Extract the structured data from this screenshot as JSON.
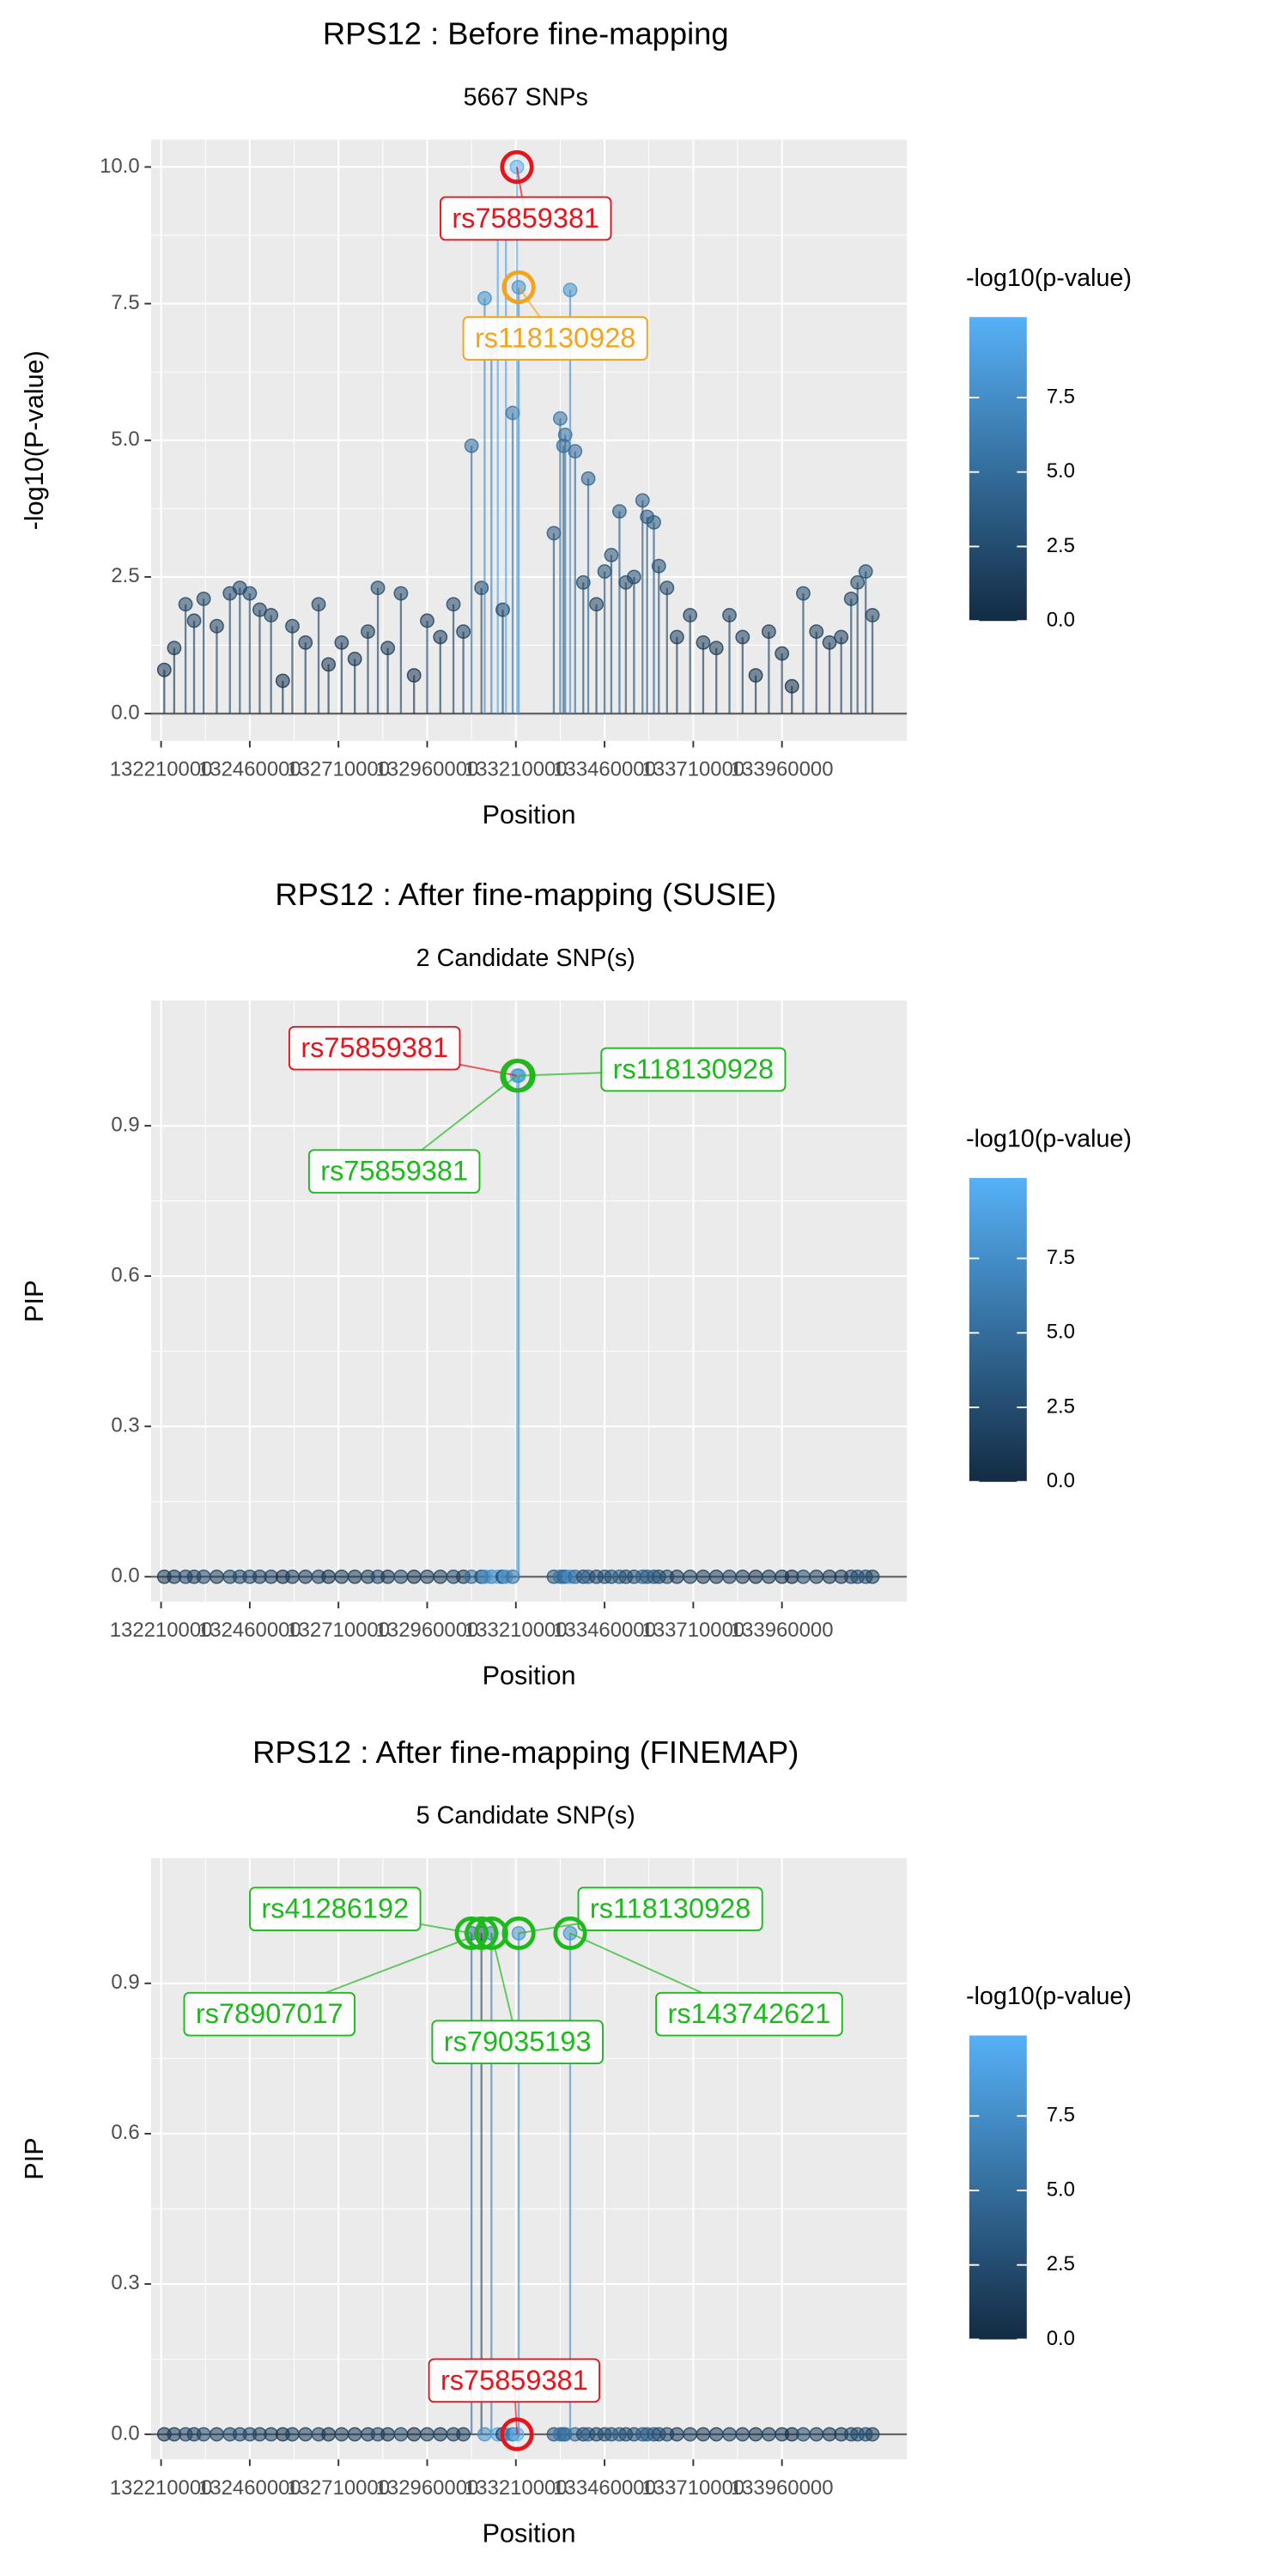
{
  "chart_data": [
    {
      "type": "lollipop",
      "title": "RPS12 : Before fine-mapping",
      "subtitle": "5667 SNPs",
      "x_label": "Position",
      "y_label": "-log10(P-value)",
      "x": [
        132219000,
        132247000,
        132279000,
        132303000,
        132330000,
        132367000,
        132404000,
        132432000,
        132460000,
        132488000,
        132520000,
        132553000,
        132580000,
        132617000,
        132654000,
        132682000,
        132719000,
        132756000,
        132793000,
        132821000,
        132849000,
        132886000,
        132923000,
        132960000,
        132997000,
        133034000,
        133062000,
        133085000,
        133113000,
        133122000,
        133141000,
        133159000,
        133173000,
        133182000,
        133201000,
        133213000,
        133218000,
        133317000,
        133335000,
        133344000,
        133349000,
        133363000,
        133377000,
        133400000,
        133414000,
        133437000,
        133460000,
        133479000,
        133502000,
        133520000,
        133543000,
        133567000,
        133580000,
        133599000,
        133613000,
        133636000,
        133664000,
        133701000,
        133738000,
        133775000,
        133812000,
        133849000,
        133886000,
        133923000,
        133960000,
        133988000,
        134020000,
        134057000,
        134094000,
        134127000,
        134155000,
        134173000,
        134196000,
        134215000
      ],
      "values": [
        0.8,
        1.2,
        2.0,
        1.7,
        2.1,
        1.6,
        2.2,
        2.3,
        2.2,
        1.9,
        1.8,
        0.6,
        1.6,
        1.3,
        2.0,
        0.9,
        1.3,
        1.0,
        1.5,
        2.3,
        1.2,
        2.2,
        0.7,
        1.7,
        1.4,
        2.0,
        1.5,
        4.9,
        2.3,
        7.6,
        6.7,
        9.3,
        1.9,
        9.0,
        5.5,
        10.0,
        7.8,
        3.3,
        5.4,
        4.9,
        5.1,
        7.75,
        4.8,
        2.4,
        4.3,
        2.0,
        2.6,
        2.9,
        3.7,
        2.4,
        2.5,
        3.9,
        3.6,
        3.5,
        2.7,
        2.3,
        1.4,
        1.8,
        1.3,
        1.2,
        1.8,
        1.4,
        0.7,
        1.5,
        1.1,
        0.5,
        2.2,
        1.5,
        1.3,
        1.4,
        2.1,
        2.4,
        2.6,
        1.8
      ],
      "xlim": [
        132182000,
        134312000
      ],
      "xticks": [
        132210000,
        132460000,
        132710000,
        132960000,
        133210000,
        133460000,
        133710000,
        133960000
      ],
      "ylim": [
        -0.5,
        10.5
      ],
      "yticks": [
        {
          "value": 0,
          "label": "0.0"
        },
        2.5,
        {
          "value": 5,
          "label": "5.0"
        },
        7.5,
        {
          "value": 10,
          "label": "10.0"
        }
      ],
      "grid": true,
      "colorbar": {
        "title": "-log10(p-value)",
        "limits": [
          0,
          10.2
        ],
        "colors": [
          "#132B43",
          "#56B1F7"
        ],
        "ticks": [
          {
            "value": 0,
            "label": "0.0"
          },
          2.5,
          {
            "value": 5,
            "label": "5.0"
          },
          7.5
        ]
      },
      "annotations": [
        {
          "label": "rs75859381",
          "x": 133213000,
          "y": 10.0,
          "color": "#e8141b"
        },
        {
          "label": "rs118130928",
          "x": 133218000,
          "y": 7.8,
          "color": "#f5a31a"
        }
      ]
    },
    {
      "type": "lollipop",
      "title": "RPS12 : After fine-mapping (SUSIE)",
      "subtitle": "2 Candidate SNP(s)",
      "x_label": "Position",
      "y_label": "PIP",
      "x": [
        132219000,
        132247000,
        132279000,
        132303000,
        132330000,
        132367000,
        132404000,
        132432000,
        132460000,
        132488000,
        132520000,
        132553000,
        132580000,
        132617000,
        132654000,
        132682000,
        132719000,
        132756000,
        132793000,
        132821000,
        132849000,
        132886000,
        132923000,
        132960000,
        132997000,
        133034000,
        133062000,
        133085000,
        133113000,
        133122000,
        133141000,
        133159000,
        133173000,
        133182000,
        133201000,
        133213000,
        133218000,
        133317000,
        133335000,
        133344000,
        133349000,
        133363000,
        133377000,
        133400000,
        133414000,
        133437000,
        133460000,
        133479000,
        133502000,
        133520000,
        133543000,
        133567000,
        133580000,
        133599000,
        133613000,
        133636000,
        133664000,
        133701000,
        133738000,
        133775000,
        133812000,
        133849000,
        133886000,
        133923000,
        133960000,
        133988000,
        134020000,
        134057000,
        134094000,
        134127000,
        134155000,
        134173000,
        134196000,
        134215000
      ],
      "values": [
        0,
        0,
        0,
        0,
        0,
        0,
        0,
        0,
        0,
        0,
        0,
        0,
        0,
        0,
        0,
        0,
        0,
        0,
        0,
        0,
        0,
        0,
        0,
        0,
        0,
        0,
        0,
        0,
        0,
        0,
        0,
        0,
        0,
        0,
        0,
        1.0,
        1.0,
        0,
        0,
        0,
        0,
        0,
        0,
        0,
        0,
        0,
        0,
        0,
        0,
        0,
        0,
        0,
        0,
        0,
        0,
        0,
        0,
        0,
        0,
        0,
        0,
        0,
        0,
        0,
        0,
        0,
        0,
        0,
        0,
        0,
        0,
        0,
        0,
        0
      ],
      "color_values": [
        0.8,
        1.2,
        2.0,
        1.7,
        2.1,
        1.6,
        2.2,
        2.3,
        2.2,
        1.9,
        1.8,
        0.6,
        1.6,
        1.3,
        2.0,
        0.9,
        1.3,
        1.0,
        1.5,
        2.3,
        1.2,
        2.2,
        0.7,
        1.7,
        1.4,
        2.0,
        1.5,
        4.9,
        2.3,
        7.6,
        6.7,
        9.3,
        1.9,
        9.0,
        5.5,
        10.0,
        7.8,
        3.3,
        5.4,
        4.9,
        5.1,
        7.75,
        4.8,
        2.4,
        4.3,
        2.0,
        2.6,
        2.9,
        3.7,
        2.4,
        2.5,
        3.9,
        3.6,
        3.5,
        2.7,
        2.3,
        1.4,
        1.8,
        1.3,
        1.2,
        1.8,
        1.4,
        0.7,
        1.5,
        1.1,
        0.5,
        2.2,
        1.5,
        1.3,
        1.4,
        2.1,
        2.4,
        2.6,
        1.8
      ],
      "xlim": [
        132182000,
        134312000
      ],
      "xticks": [
        132210000,
        132460000,
        132710000,
        132960000,
        133210000,
        133460000,
        133710000,
        133960000
      ],
      "ylim": [
        -0.05,
        1.15
      ],
      "yticks": [
        {
          "value": 0,
          "label": "0.0"
        },
        0.3,
        0.6,
        0.9
      ],
      "grid": true,
      "colorbar": {
        "title": "-log10(p-value)",
        "limits": [
          0,
          10.2
        ],
        "colors": [
          "#132B43",
          "#56B1F7"
        ],
        "ticks": [
          {
            "value": 0,
            "label": "0.0"
          },
          2.5,
          {
            "value": 5,
            "label": "5.0"
          },
          7.5
        ]
      },
      "annotations": [
        {
          "label": "rs75859381",
          "x": 133213000,
          "y": 1.0,
          "color": "#e8141b"
        },
        {
          "label": "rs118130928",
          "x": 133218000,
          "y": 1.0,
          "color": "#1db91d"
        },
        {
          "label": "rs75859381",
          "x": 133213000,
          "y": 1.0,
          "color": "#1db91d"
        }
      ]
    },
    {
      "type": "lollipop",
      "title": "RPS12 : After fine-mapping (FINEMAP)",
      "subtitle": "5 Candidate SNP(s)",
      "x_label": "Position",
      "y_label": "PIP",
      "x": [
        132219000,
        132247000,
        132279000,
        132303000,
        132330000,
        132367000,
        132404000,
        132432000,
        132460000,
        132488000,
        132520000,
        132553000,
        132580000,
        132617000,
        132654000,
        132682000,
        132719000,
        132756000,
        132793000,
        132821000,
        132849000,
        132886000,
        132923000,
        132960000,
        132997000,
        133034000,
        133062000,
        133085000,
        133113000,
        133122000,
        133141000,
        133159000,
        133173000,
        133182000,
        133201000,
        133213000,
        133218000,
        133317000,
        133335000,
        133344000,
        133349000,
        133363000,
        133377000,
        133400000,
        133414000,
        133437000,
        133460000,
        133479000,
        133502000,
        133520000,
        133543000,
        133567000,
        133580000,
        133599000,
        133613000,
        133636000,
        133664000,
        133701000,
        133738000,
        133775000,
        133812000,
        133849000,
        133886000,
        133923000,
        133960000,
        133988000,
        134020000,
        134057000,
        134094000,
        134127000,
        134155000,
        134173000,
        134196000,
        134215000
      ],
      "values": [
        0,
        0,
        0,
        0,
        0,
        0,
        0,
        0,
        0,
        0,
        0,
        0,
        0,
        0,
        0,
        0,
        0,
        0,
        0,
        0,
        0,
        0,
        0,
        0,
        0,
        0,
        0,
        1.0,
        1.0,
        0,
        1.0,
        0,
        0,
        0,
        0,
        0,
        1.0,
        0,
        0,
        0,
        0,
        1.0,
        0,
        0,
        0,
        0,
        0,
        0,
        0,
        0,
        0,
        0,
        0,
        0,
        0,
        0,
        0,
        0,
        0,
        0,
        0,
        0,
        0,
        0,
        0,
        0,
        0,
        0,
        0,
        0,
        0,
        0,
        0,
        0
      ],
      "color_values": [
        0.8,
        1.2,
        2.0,
        1.7,
        2.1,
        1.6,
        2.2,
        2.3,
        2.2,
        1.9,
        1.8,
        0.6,
        1.6,
        1.3,
        2.0,
        0.9,
        1.3,
        1.0,
        1.5,
        2.3,
        1.2,
        2.2,
        0.7,
        1.7,
        1.4,
        2.0,
        1.5,
        4.9,
        2.3,
        7.6,
        6.7,
        9.3,
        1.9,
        9.0,
        5.5,
        10.0,
        7.8,
        3.3,
        5.4,
        4.9,
        5.1,
        7.75,
        4.8,
        2.4,
        4.3,
        2.0,
        2.6,
        2.9,
        3.7,
        2.4,
        2.5,
        3.9,
        3.6,
        3.5,
        2.7,
        2.3,
        1.4,
        1.8,
        1.3,
        1.2,
        1.8,
        1.4,
        0.7,
        1.5,
        1.1,
        0.5,
        2.2,
        1.5,
        1.3,
        1.4,
        2.1,
        2.4,
        2.6,
        1.8
      ],
      "xlim": [
        132182000,
        134312000
      ],
      "xticks": [
        132210000,
        132460000,
        132710000,
        132960000,
        133210000,
        133460000,
        133710000,
        133960000
      ],
      "ylim": [
        -0.05,
        1.15
      ],
      "yticks": [
        {
          "value": 0,
          "label": "0.0"
        },
        0.3,
        0.6,
        0.9
      ],
      "grid": true,
      "colorbar": {
        "title": "-log10(p-value)",
        "limits": [
          0,
          10.2
        ],
        "colors": [
          "#132B43",
          "#56B1F7"
        ],
        "ticks": [
          {
            "value": 0,
            "label": "0.0"
          },
          2.5,
          {
            "value": 5,
            "label": "5.0"
          },
          7.5
        ]
      },
      "annotations": [
        {
          "label": "rs41286192",
          "x": 133085000,
          "y": 1.0,
          "color": "#1db91d"
        },
        {
          "label": "rs78907017",
          "x": 133113000,
          "y": 1.0,
          "color": "#1db91d"
        },
        {
          "label": "rs79035193",
          "x": 133141000,
          "y": 1.0,
          "color": "#1db91d"
        },
        {
          "label": "rs118130928",
          "x": 133218000,
          "y": 1.0,
          "color": "#1db91d"
        },
        {
          "label": "rs143742621",
          "x": 133363000,
          "y": 1.0,
          "color": "#1db91d"
        },
        {
          "label": "rs75859381",
          "x": 133213000,
          "y": 0,
          "color": "#e8141b"
        }
      ]
    }
  ]
}
